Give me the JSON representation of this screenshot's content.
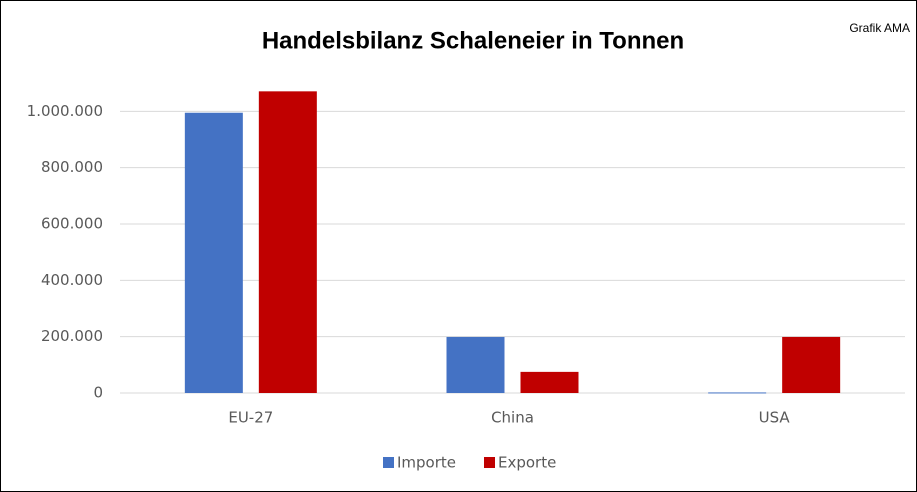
{
  "chart_data": {
    "type": "bar",
    "title": "Handelsbilanz Schaleneier in Tonnen",
    "annotation": "Grafik AMA",
    "categories": [
      "EU-27",
      "China",
      "USA"
    ],
    "series": [
      {
        "name": "Importe",
        "color": "#4472c4",
        "values": [
          995000,
          199000,
          2000
        ]
      },
      {
        "name": "Exporte",
        "color": "#c00000",
        "values": [
          1071000,
          75000,
          199000
        ]
      }
    ],
    "ylim": [
      0,
      1200000
    ],
    "yticks": [
      0,
      {
        "value": 200000,
        "label": "200.000"
      },
      {
        "value": 400000,
        "label": "400.000"
      },
      {
        "value": 600000,
        "label": "600.000"
      },
      {
        "value": 800000,
        "label": "800.000"
      },
      {
        "value": 1000000,
        "label": "1.000.000"
      }
    ],
    "grid": true,
    "legend": "bottom"
  }
}
